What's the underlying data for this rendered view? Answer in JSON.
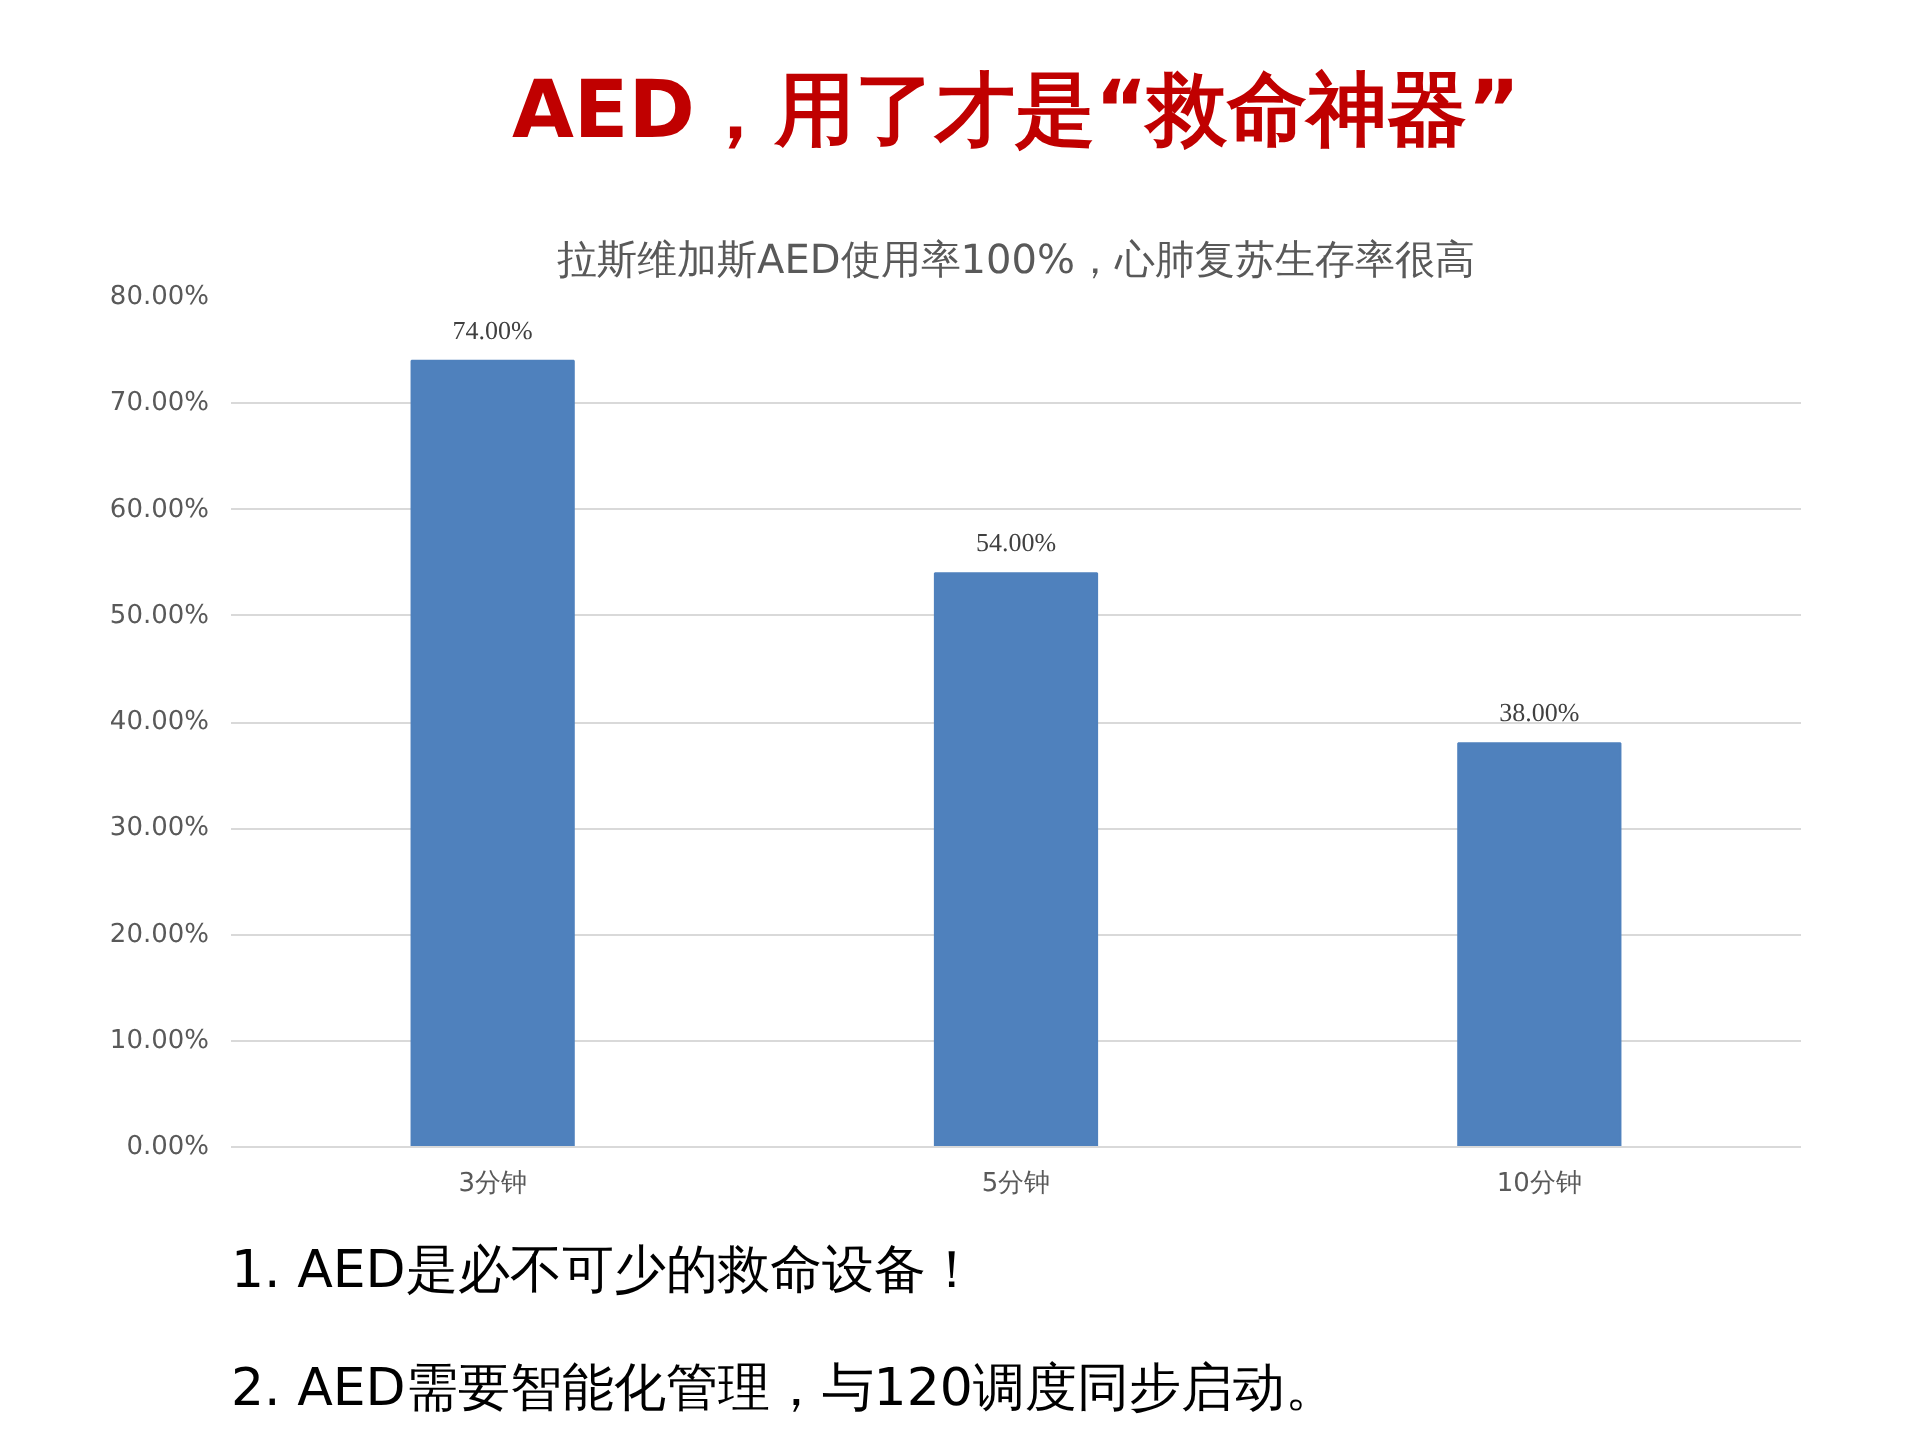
{
  "chart_data": {
    "type": "bar",
    "title": "AED，用了才是“救命神器”",
    "subtitle": "拉斯维加斯AED使用率100%，心肺复苏生存率很高",
    "categories": [
      "3分钟",
      "5分钟",
      "10分钟"
    ],
    "values": [
      74,
      54,
      38
    ],
    "value_labels": [
      "74.00%",
      "54.00%",
      "38.00%"
    ],
    "color": "#4f81bd",
    "ylim": [
      0,
      80
    ],
    "yticks": [
      {
        "value": 0,
        "label": "0.00%"
      },
      {
        "value": 10,
        "label": "10.00%"
      },
      {
        "value": 20,
        "label": "20.00%"
      },
      {
        "value": 30,
        "label": "30.00%"
      },
      {
        "value": 40,
        "label": "40.00%"
      },
      {
        "value": 50,
        "label": "50.00%"
      },
      {
        "value": 60,
        "label": "60.00%"
      },
      {
        "value": 70,
        "label": "70.00%"
      },
      {
        "value": 80,
        "label": "80.00%"
      }
    ],
    "grid": "y",
    "annotations": [
      "1.  AED是必不可少的救命设备！",
      "2.  AED需要智能化管理，与120调度同步启动。"
    ]
  }
}
